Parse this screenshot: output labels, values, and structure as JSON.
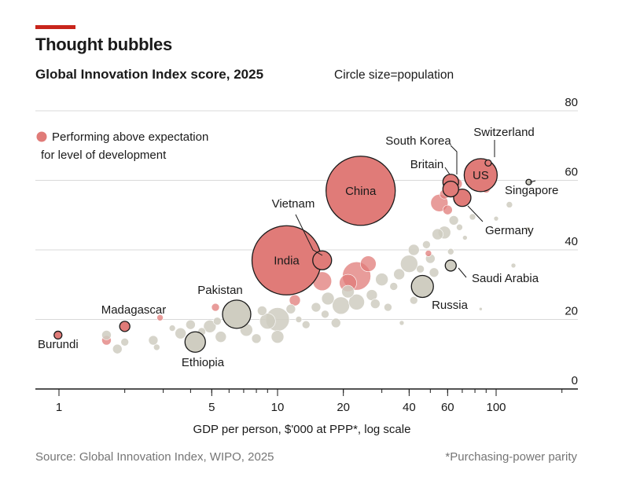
{
  "header": {
    "title": "Thought bubbles",
    "subtitle": "Global Innovation Index score, 2025",
    "size_note": "Circle size=population"
  },
  "legend": {
    "label_line1": "Performing above expectation",
    "label_line2": "for level of development",
    "color": "#e07b78"
  },
  "footer": {
    "source": "Source: Global Innovation Index, WIPO, 2025",
    "footnote": "*Purchasing-power parity"
  },
  "colors": {
    "above": "#e07b78",
    "other": "#cfcdc1",
    "outline": "#1a1a1a",
    "grid": "#d9d9d9",
    "accent": "#c8251b"
  },
  "chart_data": {
    "type": "scatter",
    "title": "Global Innovation Index score, 2025",
    "xlabel": "GDP per person, $'000 at PPP*, log scale",
    "ylabel": "",
    "x_scale": "log",
    "xlim": [
      0.75,
      250
    ],
    "ylim": [
      0,
      80
    ],
    "x_ticks": [
      1,
      5,
      10,
      20,
      40,
      60,
      100
    ],
    "x_tick_labels": [
      "1",
      "5",
      "10",
      "20",
      "40",
      "60",
      "100"
    ],
    "y_ticks": [
      0,
      20,
      40,
      60,
      80
    ],
    "y_tick_labels": [
      "0",
      "20",
      "40",
      "60",
      "80"
    ],
    "grid": "horizontal",
    "labeled_points": [
      {
        "name": "Burundi",
        "x": 0.99,
        "y": 15.5,
        "r": 5,
        "group": "above"
      },
      {
        "name": "Madagascar",
        "x": 2.0,
        "y": 18.0,
        "r": 6.5,
        "group": "above"
      },
      {
        "name": "Ethiopia",
        "x": 4.2,
        "y": 13.5,
        "r": 13,
        "group": "other"
      },
      {
        "name": "Pakistan",
        "x": 6.5,
        "y": 21.5,
        "r": 18,
        "group": "other"
      },
      {
        "name": "India",
        "x": 11.0,
        "y": 37.0,
        "r": 44,
        "group": "above"
      },
      {
        "name": "Vietnam",
        "x": 16.0,
        "y": 37.0,
        "r": 12,
        "group": "above"
      },
      {
        "name": "China",
        "x": 24.0,
        "y": 57.0,
        "r": 44,
        "group": "above"
      },
      {
        "name": "Russia",
        "x": 46.0,
        "y": 29.5,
        "r": 14,
        "group": "other"
      },
      {
        "name": "Saudi Arabia",
        "x": 62.0,
        "y": 35.5,
        "r": 7,
        "group": "other"
      },
      {
        "name": "South Korea",
        "x": 62.0,
        "y": 59.5,
        "r": 10,
        "group": "above"
      },
      {
        "name": "Britain",
        "x": 62.0,
        "y": 57.5,
        "r": 10,
        "group": "above"
      },
      {
        "name": "Germany",
        "x": 70.0,
        "y": 55.0,
        "r": 11,
        "group": "above"
      },
      {
        "name": "US",
        "x": 85.0,
        "y": 61.5,
        "r": 21,
        "group": "above"
      },
      {
        "name": "Switzerland",
        "x": 92.0,
        "y": 65.0,
        "r": 4,
        "group": "above"
      },
      {
        "name": "Singapore",
        "x": 141.0,
        "y": 59.5,
        "r": 3.5,
        "group": "other"
      }
    ],
    "unlabeled_points": [
      {
        "x": 1.65,
        "y": 14.0,
        "r": 6,
        "group": "above"
      },
      {
        "x": 2.9,
        "y": 20.5,
        "r": 4,
        "group": "above"
      },
      {
        "x": 5.2,
        "y": 23.5,
        "r": 5,
        "group": "above"
      },
      {
        "x": 12.0,
        "y": 25.5,
        "r": 7,
        "group": "above"
      },
      {
        "x": 16.0,
        "y": 31.0,
        "r": 12,
        "group": "above"
      },
      {
        "x": 21.0,
        "y": 30.5,
        "r": 11,
        "group": "above"
      },
      {
        "x": 23.0,
        "y": 32.5,
        "r": 18,
        "group": "above"
      },
      {
        "x": 26.0,
        "y": 36.0,
        "r": 10,
        "group": "above"
      },
      {
        "x": 55.0,
        "y": 53.5,
        "r": 11,
        "group": "above"
      },
      {
        "x": 58.0,
        "y": 56.0,
        "r": 6,
        "group": "above"
      },
      {
        "x": 60.0,
        "y": 51.5,
        "r": 6,
        "group": "above"
      },
      {
        "x": 66.0,
        "y": 59.0,
        "r": 7,
        "group": "above"
      },
      {
        "x": 78.0,
        "y": 61.0,
        "r": 6,
        "group": "above"
      },
      {
        "x": 90.0,
        "y": 57.5,
        "r": 5,
        "group": "above"
      },
      {
        "x": 49.0,
        "y": 39.0,
        "r": 4,
        "group": "above"
      },
      {
        "x": 1.65,
        "y": 15.5,
        "r": 6,
        "group": "other"
      },
      {
        "x": 1.85,
        "y": 11.5,
        "r": 6,
        "group": "other"
      },
      {
        "x": 2.0,
        "y": 13.5,
        "r": 5,
        "group": "other"
      },
      {
        "x": 2.7,
        "y": 14.0,
        "r": 6,
        "group": "other"
      },
      {
        "x": 2.8,
        "y": 12.0,
        "r": 4,
        "group": "other"
      },
      {
        "x": 3.3,
        "y": 17.5,
        "r": 4,
        "group": "other"
      },
      {
        "x": 3.6,
        "y": 16.0,
        "r": 7,
        "group": "other"
      },
      {
        "x": 4.0,
        "y": 18.5,
        "r": 6,
        "group": "other"
      },
      {
        "x": 4.5,
        "y": 16.5,
        "r": 5,
        "group": "other"
      },
      {
        "x": 4.9,
        "y": 18.0,
        "r": 8,
        "group": "other"
      },
      {
        "x": 5.5,
        "y": 15.0,
        "r": 7,
        "group": "other"
      },
      {
        "x": 5.3,
        "y": 19.5,
        "r": 5,
        "group": "other"
      },
      {
        "x": 7.2,
        "y": 17.0,
        "r": 8,
        "group": "other"
      },
      {
        "x": 8.0,
        "y": 14.5,
        "r": 6,
        "group": "other"
      },
      {
        "x": 8.5,
        "y": 22.5,
        "r": 6,
        "group": "other"
      },
      {
        "x": 9.0,
        "y": 19.5,
        "r": 10,
        "group": "other"
      },
      {
        "x": 10.0,
        "y": 20.0,
        "r": 15,
        "group": "other"
      },
      {
        "x": 10.0,
        "y": 15.0,
        "r": 8,
        "group": "other"
      },
      {
        "x": 11.5,
        "y": 23.0,
        "r": 6,
        "group": "other"
      },
      {
        "x": 12.5,
        "y": 20.0,
        "r": 4,
        "group": "other"
      },
      {
        "x": 13.5,
        "y": 18.5,
        "r": 5,
        "group": "other"
      },
      {
        "x": 15.0,
        "y": 23.5,
        "r": 6,
        "group": "other"
      },
      {
        "x": 16.5,
        "y": 21.5,
        "r": 5,
        "group": "other"
      },
      {
        "x": 17.0,
        "y": 26.0,
        "r": 8,
        "group": "other"
      },
      {
        "x": 18.5,
        "y": 19.0,
        "r": 6,
        "group": "other"
      },
      {
        "x": 19.5,
        "y": 24.0,
        "r": 11,
        "group": "other"
      },
      {
        "x": 21.0,
        "y": 28.0,
        "r": 8,
        "group": "other"
      },
      {
        "x": 23.0,
        "y": 25.0,
        "r": 10,
        "group": "other"
      },
      {
        "x": 27.0,
        "y": 27.0,
        "r": 7,
        "group": "other"
      },
      {
        "x": 28.0,
        "y": 24.5,
        "r": 6,
        "group": "other"
      },
      {
        "x": 30.0,
        "y": 31.5,
        "r": 8,
        "group": "other"
      },
      {
        "x": 32.0,
        "y": 23.5,
        "r": 5,
        "group": "other"
      },
      {
        "x": 34.0,
        "y": 29.5,
        "r": 5,
        "group": "other"
      },
      {
        "x": 36.0,
        "y": 33.0,
        "r": 7,
        "group": "other"
      },
      {
        "x": 37.0,
        "y": 19.0,
        "r": 3,
        "group": "other"
      },
      {
        "x": 40.0,
        "y": 36.0,
        "r": 11,
        "group": "other"
      },
      {
        "x": 42.0,
        "y": 40.0,
        "r": 7,
        "group": "other"
      },
      {
        "x": 42.0,
        "y": 25.5,
        "r": 5,
        "group": "other"
      },
      {
        "x": 45.0,
        "y": 34.5,
        "r": 5,
        "group": "other"
      },
      {
        "x": 48.0,
        "y": 41.5,
        "r": 5,
        "group": "other"
      },
      {
        "x": 50.0,
        "y": 37.5,
        "r": 6,
        "group": "other"
      },
      {
        "x": 52.0,
        "y": 33.5,
        "r": 6,
        "group": "other"
      },
      {
        "x": 54.0,
        "y": 44.5,
        "r": 7,
        "group": "other"
      },
      {
        "x": 58.0,
        "y": 45.0,
        "r": 8,
        "group": "other"
      },
      {
        "x": 62.0,
        "y": 39.5,
        "r": 4,
        "group": "other"
      },
      {
        "x": 64.0,
        "y": 48.5,
        "r": 6,
        "group": "other"
      },
      {
        "x": 68.0,
        "y": 46.5,
        "r": 4,
        "group": "other"
      },
      {
        "x": 72.0,
        "y": 43.5,
        "r": 3,
        "group": "other"
      },
      {
        "x": 78.0,
        "y": 49.5,
        "r": 4,
        "group": "other"
      },
      {
        "x": 85.0,
        "y": 23.0,
        "r": 2,
        "group": "other"
      },
      {
        "x": 100.0,
        "y": 49.0,
        "r": 3,
        "group": "other"
      },
      {
        "x": 115.0,
        "y": 53.0,
        "r": 4,
        "group": "other"
      },
      {
        "x": 120.0,
        "y": 35.5,
        "r": 3,
        "group": "other"
      },
      {
        "x": 140.0,
        "y": 46.0,
        "r": 3,
        "group": "other"
      }
    ]
  }
}
